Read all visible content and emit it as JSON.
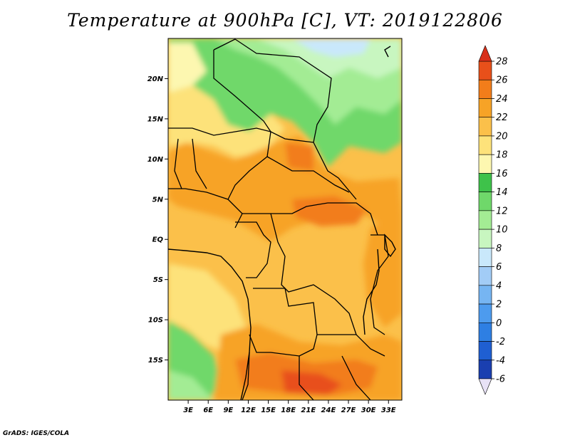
{
  "title": "Temperature at 900hPa [C], VT: 2019122806",
  "credit": "GrADS: IGES/COLA",
  "map": {
    "variable": "Temperature",
    "level": "900hPa",
    "units": "C",
    "valid_time": "2019122806",
    "lat_labels": [
      "20N",
      "15N",
      "10N",
      "5N",
      "EQ",
      "5S",
      "10S",
      "15S"
    ],
    "lat_values": [
      20,
      15,
      10,
      5,
      0,
      -5,
      -10,
      -15
    ],
    "lon_labels": [
      "3E",
      "6E",
      "9E",
      "12E",
      "15E",
      "18E",
      "21E",
      "24E",
      "27E",
      "30E",
      "33E"
    ],
    "lon_values": [
      3,
      6,
      9,
      12,
      15,
      18,
      21,
      24,
      27,
      30,
      33
    ],
    "lon_range": [
      0,
      35
    ],
    "lat_range": [
      -20,
      25
    ]
  },
  "colorbar": {
    "labels": [
      "28",
      "26",
      "24",
      "22",
      "20",
      "18",
      "16",
      "14",
      "12",
      "10",
      "8",
      "6",
      "4",
      "2",
      "0",
      "-2",
      "-4",
      "-6"
    ],
    "levels": [
      -6,
      -4,
      -2,
      0,
      2,
      4,
      6,
      8,
      10,
      12,
      14,
      16,
      18,
      20,
      22,
      24,
      26,
      28
    ],
    "colors": [
      "#0f0c6e",
      "#1a3fb0",
      "#1f5fd2",
      "#2e7fe3",
      "#4d9bee",
      "#76b5f2",
      "#a2ccf6",
      "#c9e8fb",
      "#c8f6c0",
      "#a3ec94",
      "#6fd86a",
      "#3ec24a",
      "#fdf7b0",
      "#fde27a",
      "#fbc04a",
      "#f7a326",
      "#f27d1a",
      "#e8501a",
      "#d8301a"
    ],
    "extend_colors": {
      "low": "#e8e2f6",
      "high": "#d8301a"
    }
  }
}
